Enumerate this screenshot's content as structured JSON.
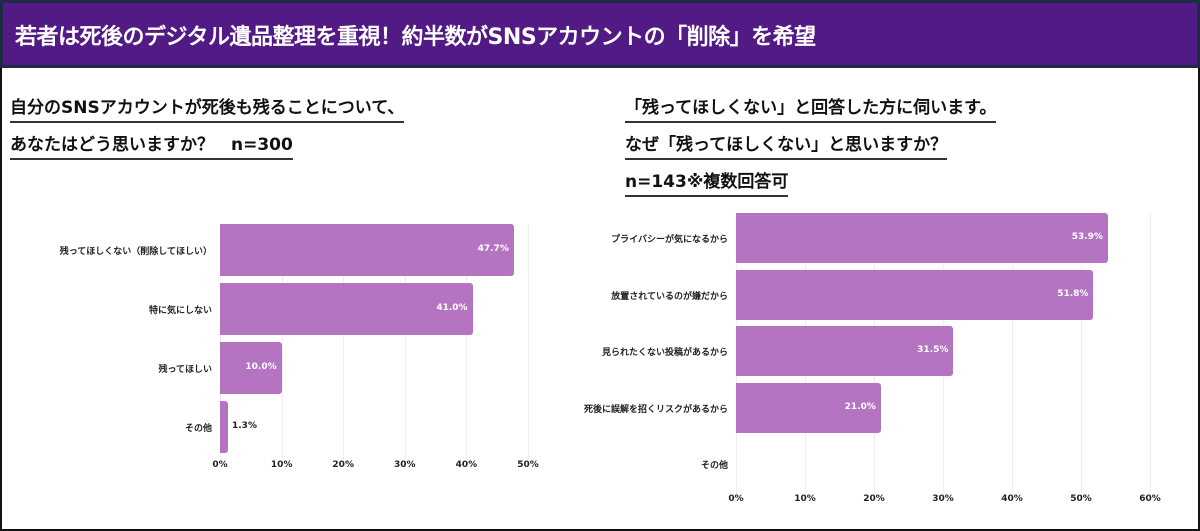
{
  "header": {
    "title": "若者は死後のデジタル遺品整理を重視！約半数がSNSアカウントの「削除」を希望"
  },
  "colors": {
    "header_bg": "#521a84",
    "bar": "#b474c2"
  },
  "chart_data": [
    {
      "type": "bar",
      "orientation": "horizontal",
      "title_lines": [
        "自分のSNSアカウントが死後も残ることについて、",
        "あなたはどう思いますか？　n=300"
      ],
      "categories": [
        "残ってほしくない（削除してほしい）",
        "特に気にしない",
        "残ってほしい",
        "その他"
      ],
      "values": [
        47.7,
        41.0,
        10.0,
        1.3
      ],
      "value_labels": [
        "47.7%",
        "41.0%",
        "10.0%",
        "1.3%"
      ],
      "xlim": [
        0,
        50
      ],
      "ticks": [
        "0%",
        "10%",
        "20%",
        "30%",
        "40%",
        "50%"
      ],
      "grid": true
    },
    {
      "type": "bar",
      "orientation": "horizontal",
      "title_lines": [
        "「残ってほしくない」と回答した方に伺います。",
        "なぜ「残ってほしくない」と思いますか？",
        "n=143※複数回答可"
      ],
      "categories": [
        "プライバシーが気になるから",
        "放置されているのが嫌だから",
        "見られたくない投稿があるから",
        "死後に誤解を招くリスクがあるから",
        "その他"
      ],
      "values": [
        53.9,
        51.8,
        31.5,
        21.0,
        null
      ],
      "value_labels": [
        "53.9%",
        "51.8%",
        "31.5%",
        "21.0%",
        ""
      ],
      "xlim": [
        0,
        60
      ],
      "ticks": [
        "0%",
        "10%",
        "20%",
        "30%",
        "40%",
        "50%",
        "60%"
      ],
      "grid": true
    }
  ]
}
